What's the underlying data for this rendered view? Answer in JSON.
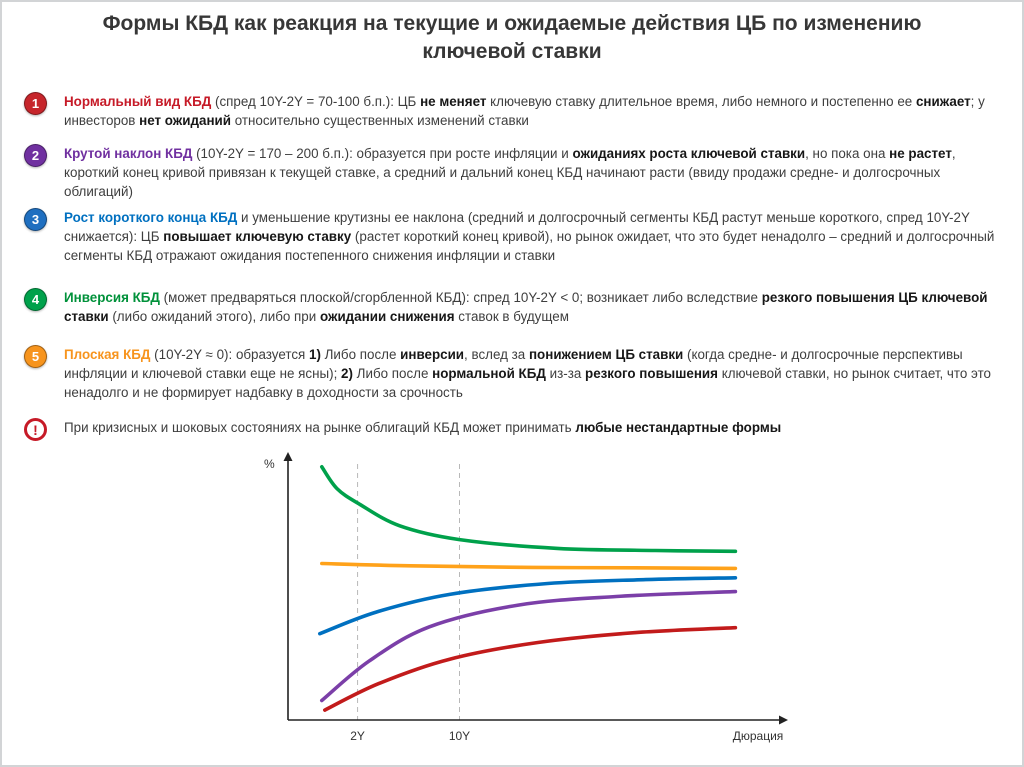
{
  "title": "Формы КБД как реакция на текущие и ожидаемые действия ЦБ по изменению ключевой ставки",
  "items": [
    {
      "number": "1",
      "badge_color": "#c6252b",
      "segments": [
        {
          "t": "Нормальный вид КБД",
          "b": true,
          "c": "#c61a27"
        },
        {
          "t": " (спред 10Y-2Y = 70-100 б.п.): ЦБ "
        },
        {
          "t": "не меняет",
          "b": true
        },
        {
          "t": " ключевую ставку длительное время, либо немного и постепенно ее "
        },
        {
          "t": "снижает",
          "b": true
        },
        {
          "t": "; у инвесторов "
        },
        {
          "t": "нет ожиданий",
          "b": true
        },
        {
          "t": " относительно существенных изменений ставки"
        }
      ]
    },
    {
      "number": "2",
      "badge_color": "#7030a0",
      "segments": [
        {
          "t": "Крутой наклон КБД",
          "b": true,
          "c": "#7030a0"
        },
        {
          "t": " (10Y-2Y = 170 – 200 б.п.): образуется при росте инфляции и "
        },
        {
          "t": "ожиданиях роста ключевой ставки",
          "b": true
        },
        {
          "t": ", но пока она "
        },
        {
          "t": "не растет",
          "b": true
        },
        {
          "t": ", короткий конец кривой привязан к текущей ставке, а средний и дальний конец КБД начинают расти (ввиду продажи средне- и долгосрочных облигаций)"
        }
      ]
    },
    {
      "number": "3",
      "badge_color": "#1f6fc0",
      "segments": [
        {
          "t": "Рост короткого конца КБД",
          "b": true,
          "c": "#0070c0"
        },
        {
          "t": " и уменьшение крутизны ее наклона (средний и долгосрочный сегменты КБД растут меньше короткого, спред 10Y-2Y снижается): ЦБ "
        },
        {
          "t": "повышает ключевую ставку",
          "b": true
        },
        {
          "t": " (растет короткий конец кривой), но рынок ожидает, что это будет ненадолго – средний и долгосрочный сегменты КБД отражают ожидания постепенного снижения инфляции и ставки"
        }
      ]
    },
    {
      "number": "4",
      "badge_color": "#00a14b",
      "segments": [
        {
          "t": "Инверсия КБД",
          "b": true,
          "c": "#00913a"
        },
        {
          "t": " (может предваряться плоской/сгорбленной КБД): спред 10Y-2Y < 0; возникает либо вследствие "
        },
        {
          "t": "резкого повышения ЦБ ключевой ставки",
          "b": true
        },
        {
          "t": " (либо ожиданий этого), либо при "
        },
        {
          "t": "ожидании снижения",
          "b": true
        },
        {
          "t": " ставок в будущем"
        }
      ]
    },
    {
      "number": "5",
      "badge_color": "#f7941d",
      "segments": [
        {
          "t": "Плоская КБД",
          "b": true,
          "c": "#f7941d"
        },
        {
          "t": " (10Y-2Y ≈ 0): образуется "
        },
        {
          "t": "1)",
          "b": true
        },
        {
          "t": " Либо после "
        },
        {
          "t": "инверсии",
          "b": true
        },
        {
          "t": ", вслед за "
        },
        {
          "t": "понижением ЦБ ставки",
          "b": true
        },
        {
          "t": " (когда средне- и долгосрочные перспективы инфляции и ключевой ставки еще не ясны); "
        },
        {
          "t": "2)",
          "b": true
        },
        {
          "t": " Либо после "
        },
        {
          "t": "нормальной КБД",
          "b": true
        },
        {
          "t": " из-за "
        },
        {
          "t": "резкого повышения",
          "b": true
        },
        {
          "t": " ключевой ставки, но рынок считает, что это ненадолго и не формирует надбавку в доходности за срочность"
        }
      ]
    }
  ],
  "warning": {
    "symbol": "!",
    "color": "#c61a27",
    "segments": [
      {
        "t": "При кризисных и шоковых состояниях на рынке облигаций КБД может принимать "
      },
      {
        "t": "любые нестандартные формы",
        "b": true
      }
    ]
  },
  "chart_data": {
    "type": "line",
    "title": "",
    "xlabel": "Дюрация",
    "ylabel": "%",
    "x_range": [
      0,
      100
    ],
    "y_range": [
      0,
      10
    ],
    "grid": "dashed vertical at ticks only",
    "legend_position": "none",
    "x_ticks": [
      {
        "label": "2Y",
        "x": 14.2
      },
      {
        "label": "10Y",
        "x": 35
      }
    ],
    "series": [
      {
        "name": "Инверсия КБД",
        "color": "#00a14b",
        "points": [
          [
            6.9,
            9.74
          ],
          [
            10,
            8.9
          ],
          [
            14.6,
            8.3
          ],
          [
            22.8,
            7.47
          ],
          [
            35,
            6.94
          ],
          [
            55,
            6.6
          ],
          [
            75,
            6.52
          ],
          [
            91.3,
            6.49
          ]
        ]
      },
      {
        "name": "Плоская КБД",
        "color": "#ffa21a",
        "points": [
          [
            6.9,
            6.02
          ],
          [
            25,
            5.93
          ],
          [
            50,
            5.87
          ],
          [
            75,
            5.85
          ],
          [
            91.3,
            5.83
          ]
        ]
      },
      {
        "name": "Рост короткого конца КБД",
        "color": "#0070c0",
        "points": [
          [
            6.5,
            3.32
          ],
          [
            18,
            4.15
          ],
          [
            33,
            4.83
          ],
          [
            53,
            5.25
          ],
          [
            73,
            5.4
          ],
          [
            91.3,
            5.47
          ]
        ]
      },
      {
        "name": "Крутой наклон КБД",
        "color": "#7b3fa8",
        "points": [
          [
            6.9,
            0.75
          ],
          [
            16.5,
            2.26
          ],
          [
            28.8,
            3.58
          ],
          [
            47,
            4.42
          ],
          [
            67,
            4.75
          ],
          [
            91.3,
            4.94
          ]
        ]
      },
      {
        "name": "Нормальный вид КБД",
        "color": "#c21b1b",
        "points": [
          [
            7.5,
            0.38
          ],
          [
            18.5,
            1.4
          ],
          [
            33,
            2.34
          ],
          [
            51,
            2.98
          ],
          [
            71,
            3.36
          ],
          [
            91.3,
            3.55
          ]
        ]
      }
    ]
  }
}
